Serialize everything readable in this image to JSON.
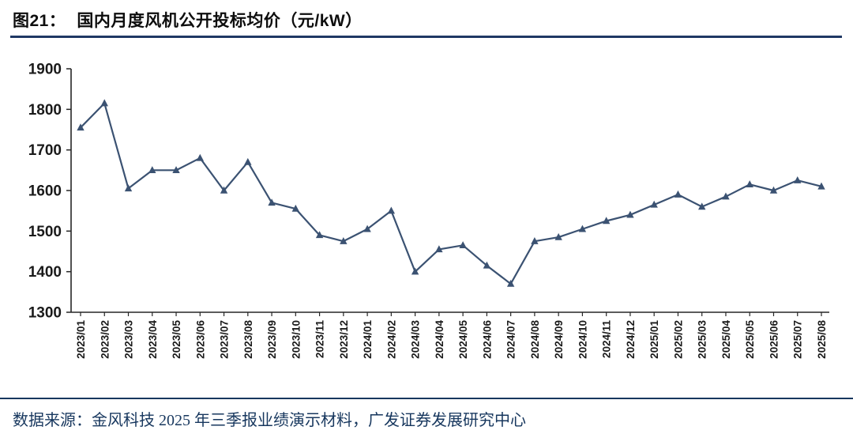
{
  "header": {
    "figure_label": "图21：",
    "title": "国内月度风机公开投标均价（元/kW）"
  },
  "footer": {
    "source": "数据来源：金风科技 2025 年三季报业绩演示材料，广发证券发展研究中心"
  },
  "colors": {
    "line": "#3B5272",
    "title_rule": "#1F3864",
    "footer_rule": "#17375E",
    "footer_text": "#17375E",
    "axis_text": "#1A1A1A"
  },
  "chart_data": {
    "type": "line",
    "title": "国内月度风机公开投标均价（元/kW）",
    "xlabel": "",
    "ylabel": "",
    "ylim": [
      1300,
      1900
    ],
    "ytick_step": 100,
    "yticks": [
      1300,
      1400,
      1500,
      1600,
      1700,
      1800,
      1900
    ],
    "grid": false,
    "legend_position": "none",
    "marker": "triangle",
    "categories": [
      "2023/01",
      "2023/02",
      "2023/03",
      "2023/04",
      "2023/05",
      "2023/06",
      "2023/07",
      "2023/08",
      "2023/09",
      "2023/10",
      "2023/11",
      "2023/12",
      "2024/01",
      "2024/02",
      "2024/03",
      "2024/04",
      "2024/05",
      "2024/06",
      "2024/07",
      "2024/08",
      "2024/09",
      "2024/10",
      "2024/11",
      "2024/12",
      "2025/01",
      "2025/02",
      "2025/03",
      "2025/04",
      "2025/05",
      "2025/06",
      "2025/07",
      "2025/08"
    ],
    "series": [
      {
        "name": "国内月度风机公开投标均价（元/kW）",
        "values": [
          1755,
          1815,
          1605,
          1650,
          1650,
          1680,
          1600,
          1670,
          1570,
          1555,
          1490,
          1475,
          1505,
          1550,
          1400,
          1455,
          1465,
          1415,
          1370,
          1475,
          1485,
          1505,
          1525,
          1540,
          1565,
          1590,
          1560,
          1585,
          1615,
          1600,
          1625,
          1610
        ]
      }
    ]
  }
}
